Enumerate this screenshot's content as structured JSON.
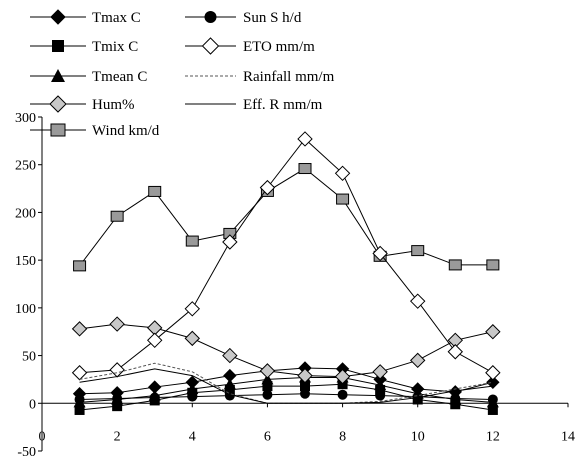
{
  "chart_data": {
    "type": "line",
    "title": "",
    "xlabel": "",
    "ylabel": "",
    "xlim": [
      0,
      14
    ],
    "ylim": [
      -50,
      300
    ],
    "x_ticks": [
      0,
      2,
      4,
      6,
      8,
      10,
      12,
      14
    ],
    "y_ticks": [
      -50,
      0,
      50,
      100,
      150,
      200,
      250,
      300
    ],
    "grid": false,
    "legend_position": "top-left",
    "x": [
      1,
      2,
      3,
      4,
      5,
      6,
      7,
      8,
      9,
      10,
      11,
      12
    ],
    "series": [
      {
        "name": "Tmax C",
        "marker": "diamond-filled",
        "line": "solid",
        "values": [
          10,
          11,
          17,
          22,
          29,
          34,
          37,
          36,
          25,
          15,
          12,
          22
        ]
      },
      {
        "name": "Tmix C",
        "marker": "square-filled",
        "line": "solid",
        "values": [
          -7,
          -3,
          3,
          11,
          14,
          18,
          18,
          20,
          14,
          4,
          -1,
          -7
        ]
      },
      {
        "name": "Tmean C",
        "marker": "triangle-filled",
        "line": "solid",
        "values": [
          1,
          4,
          8,
          15,
          20,
          25,
          27,
          27,
          19,
          10,
          4,
          1
        ]
      },
      {
        "name": "Hum%",
        "marker": "diamond-gray",
        "line": "solid",
        "values": [
          78,
          83,
          79,
          68,
          50,
          34,
          29,
          28,
          33,
          45,
          66,
          75
        ]
      },
      {
        "name": "Wind km/d",
        "marker": "square-gray",
        "line": "solid",
        "values": [
          144,
          196,
          222,
          170,
          178,
          222,
          246,
          214,
          154,
          160,
          145,
          145
        ]
      },
      {
        "name": "Sun S h/d",
        "marker": "circle-filled",
        "line": "solid",
        "values": [
          4,
          5,
          6,
          7,
          8,
          9,
          10,
          9,
          8,
          7,
          5,
          4
        ]
      },
      {
        "name": "ETO mm/m",
        "marker": "diamond-open",
        "line": "solid",
        "values": [
          32,
          35,
          66,
          99,
          169,
          226,
          277,
          241,
          157,
          107,
          54,
          32
        ]
      },
      {
        "name": "Rainfall mm/m",
        "marker": "none",
        "line": "dashed",
        "values": [
          25,
          32,
          42,
          33,
          10,
          0,
          0,
          0,
          2,
          8,
          15,
          22
        ]
      },
      {
        "name": "Eff. R mm/m",
        "marker": "none",
        "line": "solid",
        "values": [
          22,
          28,
          36,
          29,
          9,
          0,
          0,
          0,
          1,
          6,
          13,
          18
        ]
      }
    ]
  }
}
